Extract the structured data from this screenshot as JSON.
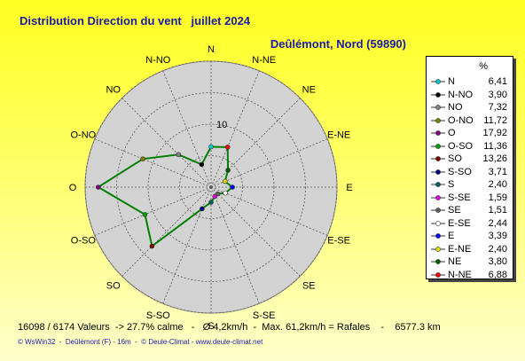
{
  "header": {
    "title": "Distribution Direction du vent   juillet 2024",
    "location": "Deûlémont, Nord (59890)"
  },
  "footer": {
    "summary": "16098 / 6174 Valeurs  -> 27.7% calme   -   Ø 4,2km/h  -  Max. 61,2km/h = Rafales    -    6577.3 km",
    "credits": "© WsWin32  -  Deûlémont (F) - 16m  -  © Deule-Climat - www.deule-climat.net"
  },
  "legend": {
    "unit_label": "%"
  },
  "chart_data": {
    "type": "radar",
    "title": "Distribution Direction du vent   juillet 2024",
    "subtitle": "Deûlémont, Nord (59890)",
    "radial_max": 20,
    "radial_ticks": [
      5,
      10,
      15,
      20
    ],
    "radial_tick_label": "10",
    "grid": true,
    "legend_position": "right",
    "line_color": "#008000",
    "directions": [
      {
        "label": "N",
        "value": 6.41,
        "display": "6,41",
        "color": "#00cccc"
      },
      {
        "label": "N-NO",
        "value": 3.9,
        "display": "3,90",
        "color": "#000000"
      },
      {
        "label": "NO",
        "value": 7.32,
        "display": "7,32",
        "color": "#808080"
      },
      {
        "label": "O-NO",
        "value": 11.72,
        "display": "11,72",
        "color": "#808000"
      },
      {
        "label": "O",
        "value": 17.92,
        "display": "17,92",
        "color": "#800080"
      },
      {
        "label": "O-SO",
        "value": 11.36,
        "display": "11,36",
        "color": "#00a000"
      },
      {
        "label": "SO",
        "value": 13.26,
        "display": "13,26",
        "color": "#800000"
      },
      {
        "label": "S-SO",
        "value": 3.71,
        "display": "3,71",
        "color": "#000080"
      },
      {
        "label": "S",
        "value": 2.4,
        "display": "2,40",
        "color": "#006060"
      },
      {
        "label": "S-SE",
        "value": 1.59,
        "display": "1,59",
        "color": "#e000e0"
      },
      {
        "label": "SE",
        "value": 1.51,
        "display": "1,51",
        "color": "#606060"
      },
      {
        "label": "E-SE",
        "value": 2.44,
        "display": "2,44",
        "color": "#ffffff"
      },
      {
        "label": "E",
        "value": 3.39,
        "display": "3,39",
        "color": "#0000ff"
      },
      {
        "label": "E-NE",
        "value": 2.4,
        "display": "2,40",
        "color": "#e0e000"
      },
      {
        "label": "NE",
        "value": 3.8,
        "display": "3,80",
        "color": "#006000"
      },
      {
        "label": "N-NE",
        "value": 6.88,
        "display": "6,88",
        "color": "#ff0000"
      }
    ]
  }
}
